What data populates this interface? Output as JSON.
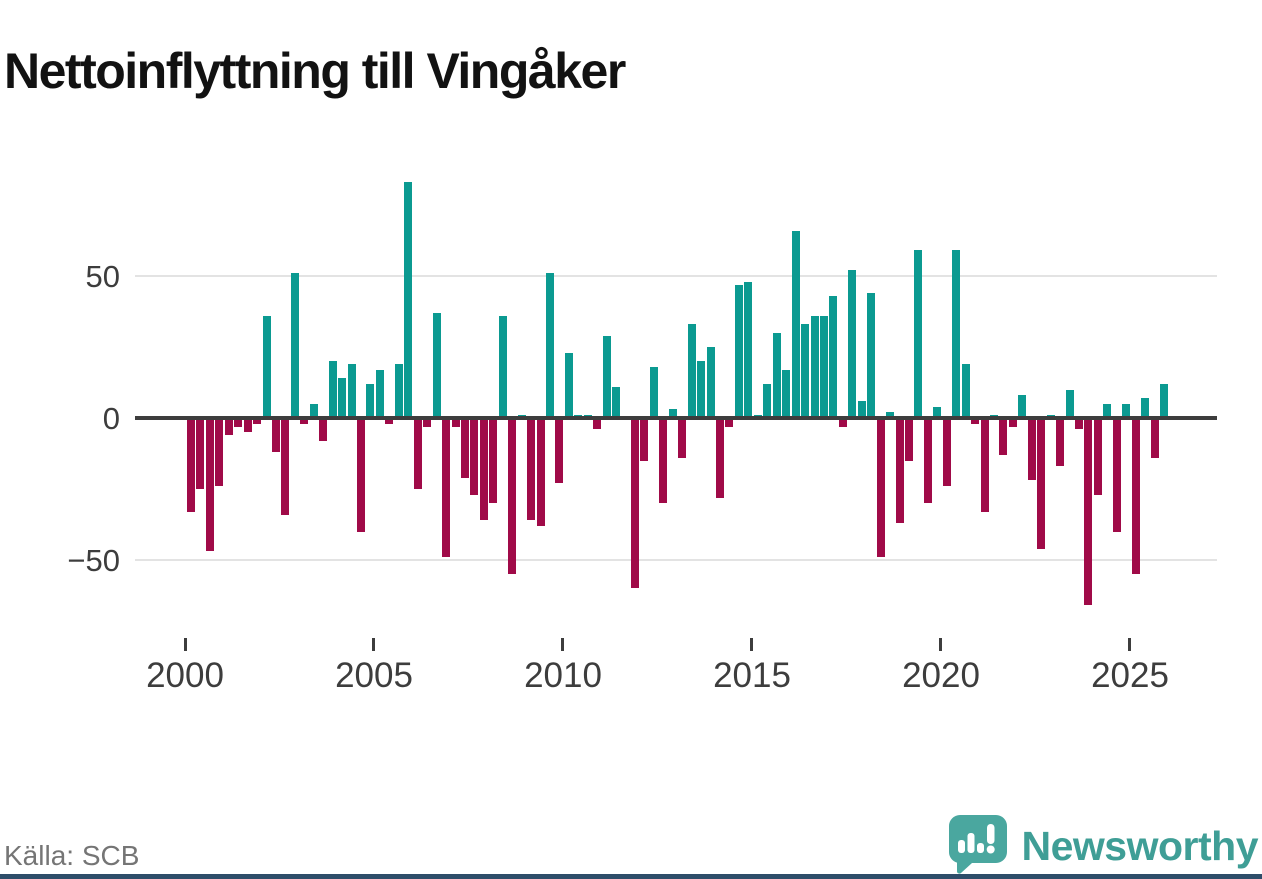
{
  "header": {
    "title": "Nettoinflyttning till Vingåker"
  },
  "footer": {
    "source": "Källa: SCB",
    "brand": "Newsworthy"
  },
  "chart_data": {
    "type": "bar",
    "title": "Nettoinflyttning till Vingåker",
    "frequency": "quarterly",
    "x_tick_labels": [
      "2000",
      "2005",
      "2010",
      "2015",
      "2020",
      "2025"
    ],
    "x_tick_years": [
      2000,
      2005,
      2010,
      2015,
      2020,
      2025
    ],
    "y_tick_labels": [
      "50",
      "0",
      "−50"
    ],
    "y_ticks": [
      50,
      0,
      -50
    ],
    "ylim": [
      -75,
      90
    ],
    "grid": "horizontal-at-plus-minus-50",
    "legend": "none",
    "colors": {
      "positive": "#0b9a91",
      "negative": "#a00a48"
    },
    "years": [
      {
        "year": 2000,
        "values": [
          -33,
          -25,
          -47,
          -24
        ]
      },
      {
        "year": 2001,
        "values": [
          -6,
          -3,
          -5,
          -2
        ]
      },
      {
        "year": 2002,
        "values": [
          36,
          -12,
          -34,
          51
        ]
      },
      {
        "year": 2003,
        "values": [
          -2,
          5,
          -8,
          20
        ]
      },
      {
        "year": 2004,
        "values": [
          14,
          19,
          -40,
          12
        ]
      },
      {
        "year": 2005,
        "values": [
          17,
          -2,
          19,
          83
        ]
      },
      {
        "year": 2006,
        "values": [
          -25,
          -3,
          37,
          -49
        ]
      },
      {
        "year": 2007,
        "values": [
          -3,
          -21,
          -27,
          -36
        ]
      },
      {
        "year": 2008,
        "values": [
          -30,
          36,
          -55,
          1
        ]
      },
      {
        "year": 2009,
        "values": [
          -36,
          -38,
          51,
          -23
        ]
      },
      {
        "year": 2010,
        "values": [
          23,
          1,
          1,
          -4
        ]
      },
      {
        "year": 2011,
        "values": [
          29,
          11,
          0,
          -60
        ]
      },
      {
        "year": 2012,
        "values": [
          -15,
          18,
          -30,
          3
        ]
      },
      {
        "year": 2013,
        "values": [
          -14,
          33,
          20,
          25
        ]
      },
      {
        "year": 2014,
        "values": [
          -28,
          -3,
          47,
          48
        ]
      },
      {
        "year": 2015,
        "values": [
          1,
          12,
          30,
          17
        ]
      },
      {
        "year": 2016,
        "values": [
          66,
          33,
          36,
          36
        ]
      },
      {
        "year": 2017,
        "values": [
          43,
          -3,
          52,
          6
        ]
      },
      {
        "year": 2018,
        "values": [
          44,
          -49,
          2,
          -37
        ]
      },
      {
        "year": 2019,
        "values": [
          -15,
          59,
          -30,
          4
        ]
      },
      {
        "year": 2020,
        "values": [
          -24,
          59,
          19,
          -2
        ]
      },
      {
        "year": 2021,
        "values": [
          -33,
          1,
          -13,
          -3
        ]
      },
      {
        "year": 2022,
        "values": [
          8,
          -22,
          -46,
          1
        ]
      },
      {
        "year": 2023,
        "values": [
          -17,
          10,
          -4,
          -66
        ]
      },
      {
        "year": 2024,
        "values": [
          -27,
          5,
          -40,
          5
        ]
      },
      {
        "year": 2025,
        "values": [
          -55,
          7,
          -14,
          12
        ]
      }
    ]
  }
}
